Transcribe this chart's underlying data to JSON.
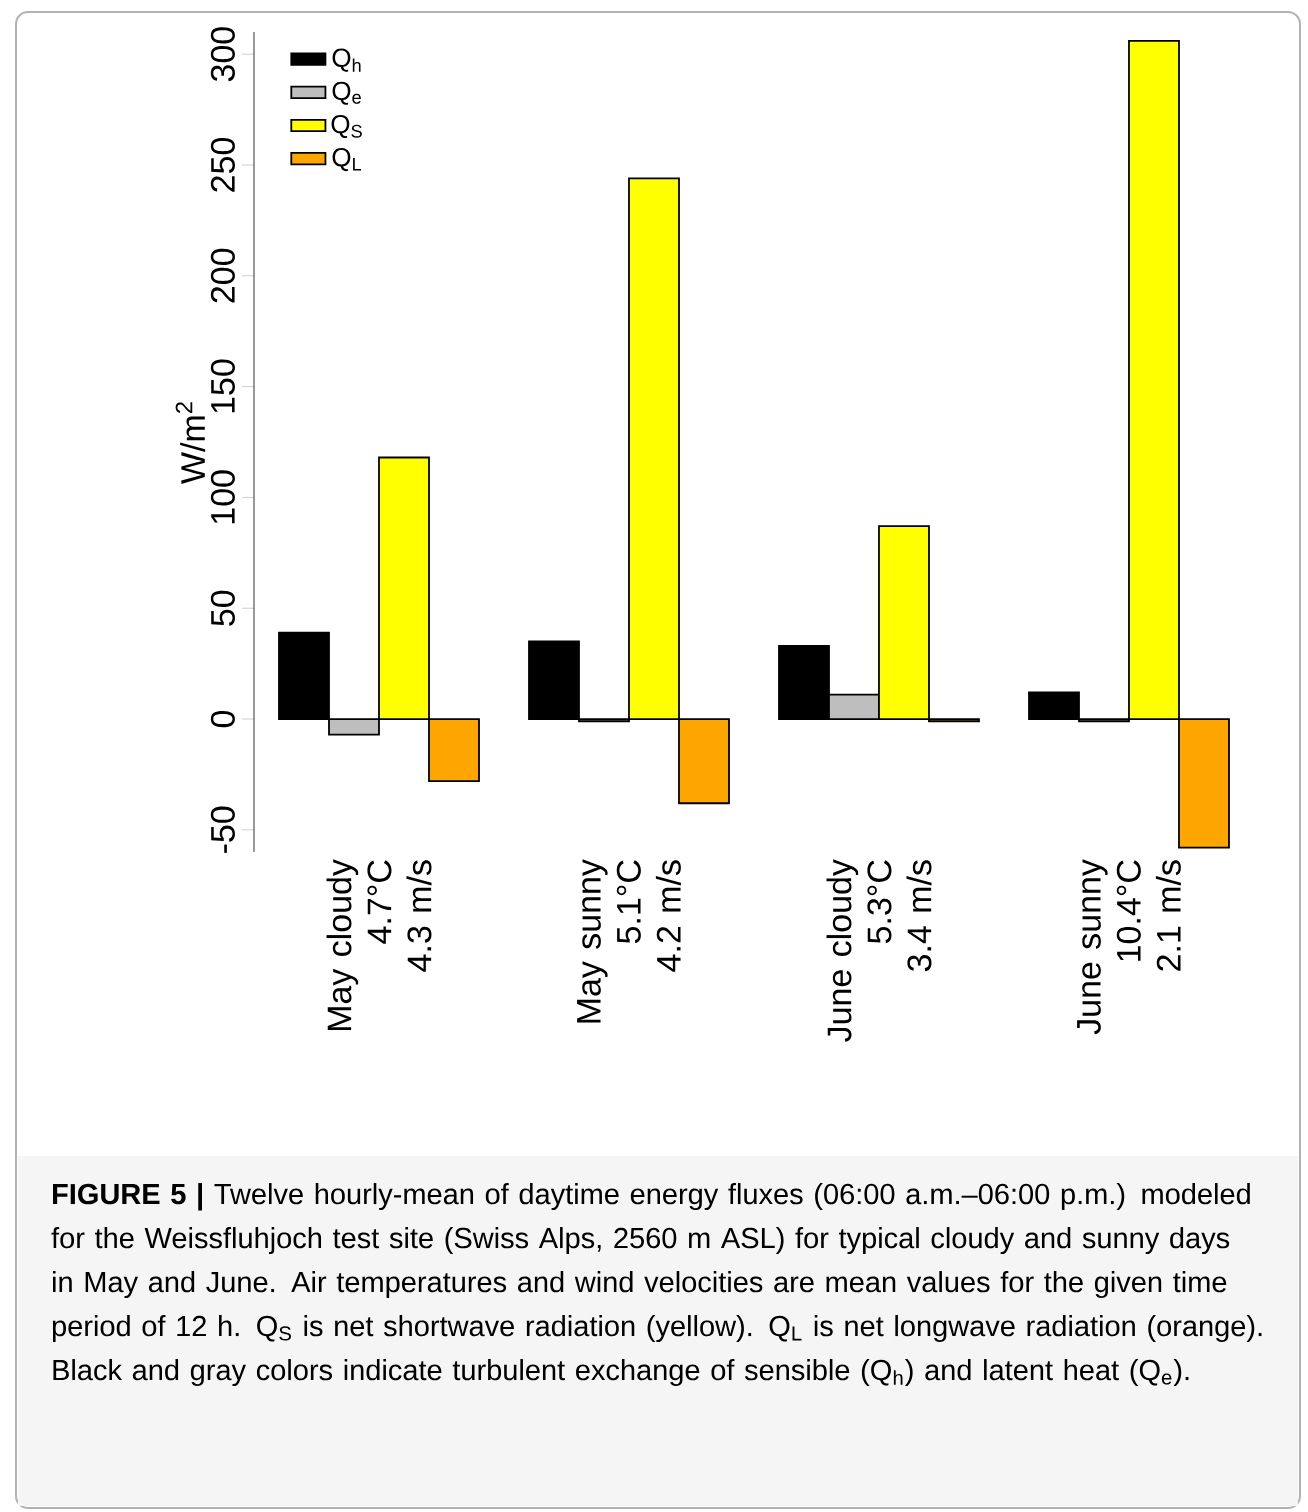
{
  "chart_data": {
    "type": "bar",
    "categories": [
      "May cloudy\n4.7°C\n4.3 m/s",
      "May sunny\n5.1°C\n4.2 m/s",
      "June cloudy\n5.3°C\n3.4 m/s",
      "June sunny\n10.4°C\n2.1 m/s"
    ],
    "series": [
      {
        "name": "Q$_{h}$",
        "color": "#000000",
        "values": [
          39,
          35,
          33,
          12
        ]
      },
      {
        "name": "Q$_{e}$",
        "color": "#bebebe",
        "values": [
          -7,
          -1,
          11,
          -1
        ]
      },
      {
        "name": "Q$_{S}$",
        "color": "#ffff00",
        "values": [
          118,
          244,
          87,
          306
        ]
      },
      {
        "name": "Q$_{L}$",
        "color": "#ffa500",
        "values": [
          -28,
          -38,
          -1,
          -58
        ]
      }
    ],
    "ylabel": "W/m$^{2}$",
    "ylim": [
      -60,
      310
    ],
    "yticks": [
      -50,
      0,
      50,
      100,
      150,
      200,
      250,
      300
    ],
    "legend": "top left",
    "annotations": [
      "**FIGURE 5 |** Twelve hourly-mean of daytime energy fluxes (06:00 a.m.–06:00 p.m.) modeled for the Weissfluhjoch test site (Swiss Alps, 2560 m ASL) for typical cloudy and sunny days in May and June. Air temperatures and wind velocities are mean values for the given time period of 12 h. Q$_{S}$ is net shortwave radiation (yellow). Q$_{L}$ is net longwave radiation (orange). Black and gray colors indicate turbulent exchange of sensible (Q$_{h}$) and latent heat (Q$_{e}$)."
    ]
  }
}
